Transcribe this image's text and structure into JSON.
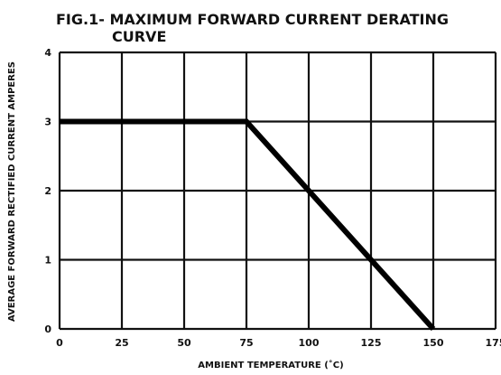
{
  "chart_data": {
    "type": "line",
    "title": "FIG.1- MAXIMUM FORWARD CURRENT DERATING",
    "title_line2": "CURVE",
    "xlabel": "AMBIENT TEMPERATURE (˚C)",
    "ylabel": "AVERAGE FORWARD RECTIFIED CURRENT AMPERES",
    "xlim": [
      0,
      175
    ],
    "ylim": [
      0,
      4
    ],
    "x_ticks": [
      "0",
      "25",
      "50",
      "75",
      "100",
      "125",
      "150",
      "175"
    ],
    "y_ticks": [
      "0",
      "1",
      "2",
      "3",
      "4"
    ],
    "grid": true,
    "series": [
      {
        "x": [
          0,
          75,
          150
        ],
        "y": [
          3,
          3,
          0
        ]
      }
    ]
  },
  "colors": {
    "line": "#000000",
    "grid": "#111111",
    "text": "#111111"
  }
}
